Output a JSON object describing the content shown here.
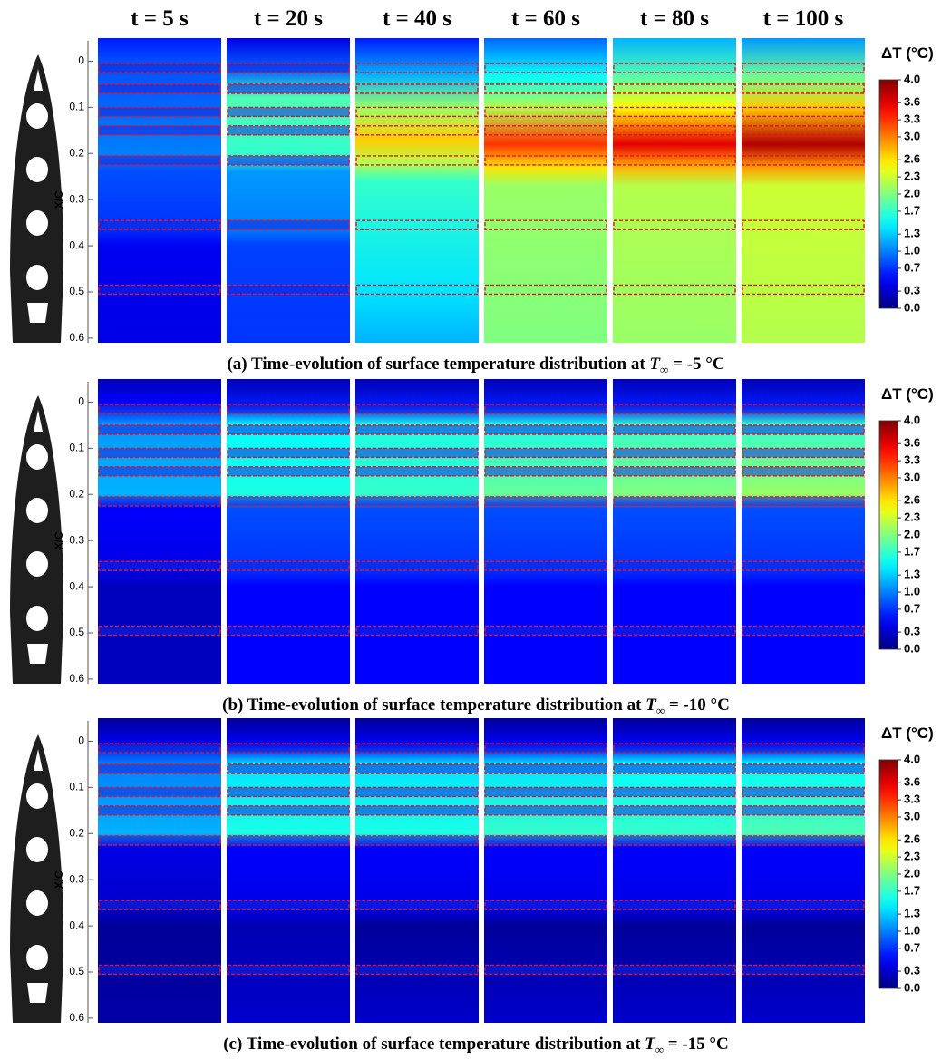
{
  "columns": [
    "t = 5 s",
    "t = 20 s",
    "t = 40 s",
    "t = 60 s",
    "t = 80 s",
    "t = 100 s"
  ],
  "axis": {
    "label": "X/C",
    "ylim": [
      -0.05,
      0.61
    ],
    "yticks": [
      0,
      0.1,
      0.2,
      0.3,
      0.4,
      0.5,
      0.6
    ]
  },
  "colorbar": {
    "title": "ΔT (°C)",
    "range": [
      0,
      4
    ],
    "ticks": [
      {
        "value": 4,
        "label": "4.0"
      },
      3.6,
      3.3,
      {
        "value": 3,
        "label": "3.0"
      },
      2.6,
      2.3,
      {
        "value": 2,
        "label": "2.0"
      },
      1.7,
      1.3,
      {
        "value": 1,
        "label": "1.0"
      },
      0.7,
      0.3,
      {
        "value": 0,
        "label": "0.0"
      }
    ]
  },
  "panels": [
    {
      "caption": {
        "prefix": "(a) Time-evolution of surface temperature distribution at ",
        "symbol": "T",
        "subscript": "∞",
        "suffix": " = -5 °C"
      }
    },
    {
      "caption": {
        "prefix": "(b) Time-evolution of surface temperature distribution at ",
        "symbol": "T",
        "subscript": "∞",
        "suffix": " = -10 °C"
      }
    },
    {
      "caption": {
        "prefix": "(c) Time-evolution of surface temperature distribution at ",
        "symbol": "T",
        "subscript": "∞",
        "suffix": " = -15 °C"
      }
    }
  ]
}
